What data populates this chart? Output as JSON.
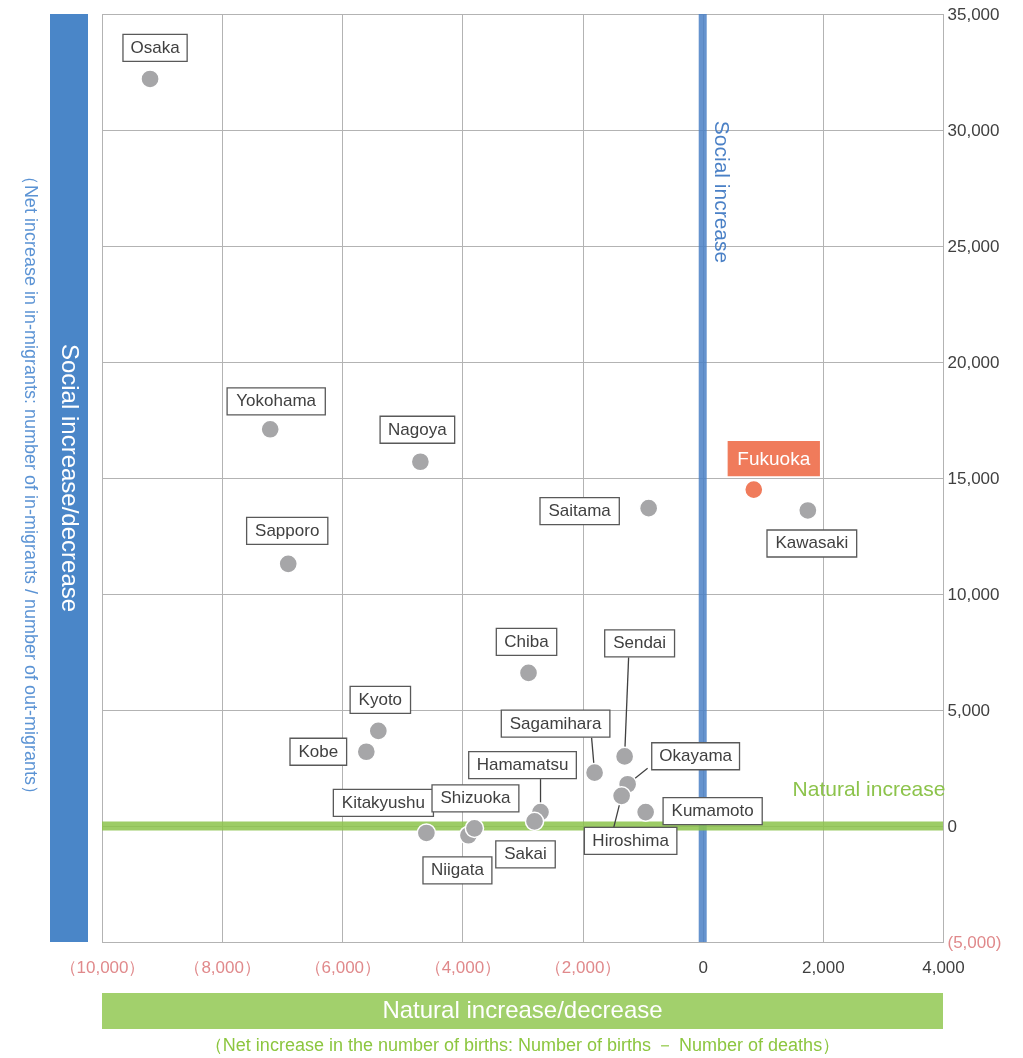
{
  "chart_data": {
    "type": "scatter",
    "xlabel": "Natural increase/decrease",
    "ylabel": "Social increase/decrease",
    "x": [
      -9200,
      -7200,
      -4700,
      -6900,
      850,
      -900,
      1750,
      -2900,
      -1300,
      -5400,
      -5600,
      -1800,
      -1250,
      -1350,
      -2700,
      -950,
      -4600,
      -3900,
      -3800,
      -2800
    ],
    "values": [
      32200,
      17100,
      15700,
      11300,
      14500,
      13700,
      13600,
      6600,
      3000,
      4100,
      3200,
      2300,
      1800,
      1300,
      600,
      600,
      -300,
      -400,
      -100,
      200
    ],
    "colors": [
      "#a6a6a8",
      "#a6a6a8",
      "#a6a6a8",
      "#a6a6a8",
      "#f07b5b",
      "#a6a6a8",
      "#a6a6a8",
      "#a6a6a8",
      "#a6a6a8",
      "#a6a6a8",
      "#a6a6a8",
      "#a6a6a8",
      "#a6a6a8",
      "#a6a6a8",
      "#a6a6a8",
      "#a6a6a8",
      "#a6a6a8",
      "#a6a6a8",
      "#a6a6a8",
      "#a6a6a8"
    ],
    "xlim": [
      -10000,
      4000
    ],
    "ylim": [
      -5000,
      35000
    ],
    "xticks": [
      {
        "value": -10000,
        "label": "（10,000）"
      },
      {
        "value": -8000,
        "label": "（8,000）"
      },
      {
        "value": -6000,
        "label": "（6,000）"
      },
      {
        "value": -4000,
        "label": "（4,000）"
      },
      {
        "value": -2000,
        "label": "（2,000）"
      },
      0,
      {
        "value": 2000,
        "label": "2,000"
      },
      {
        "value": 4000,
        "label": "4,000"
      }
    ],
    "yticks": [
      {
        "value": -5000,
        "label": "(5,000)"
      },
      0,
      {
        "value": 5000,
        "label": "5,000"
      },
      {
        "value": 10000,
        "label": "10,000"
      },
      {
        "value": 15000,
        "label": "15,000"
      },
      {
        "value": 20000,
        "label": "20,000"
      },
      {
        "value": 25000,
        "label": "25,000"
      },
      {
        "value": 30000,
        "label": "30,000"
      },
      {
        "value": 35000,
        "label": "35,000"
      }
    ],
    "grid": true,
    "marker": "circle",
    "ref_lines": [
      {
        "axis": "x",
        "value": 0,
        "label": "Social increase",
        "color": "#4a80c6"
      },
      {
        "axis": "y",
        "value": 0,
        "label": "Natural increase",
        "color": "#8cc34b"
      }
    ],
    "annotations": [
      {
        "text": "Osaka",
        "x": -9200,
        "y": 32200
      },
      {
        "text": "Yokohama",
        "x": -7200,
        "y": 17100
      },
      {
        "text": "Nagoya",
        "x": -4700,
        "y": 15700
      },
      {
        "text": "Sapporo",
        "x": -6900,
        "y": 11300
      },
      {
        "text": "Fukuoka",
        "x": 850,
        "y": 14500
      },
      {
        "text": "Saitama",
        "x": -900,
        "y": 13700
      },
      {
        "text": "Kawasaki",
        "x": 1750,
        "y": 13600
      },
      {
        "text": "Chiba",
        "x": -2900,
        "y": 6600
      },
      {
        "text": "Sendai",
        "x": -1300,
        "y": 3000
      },
      {
        "text": "Kyoto",
        "x": -5400,
        "y": 4100
      },
      {
        "text": "Kobe",
        "x": -5600,
        "y": 3200
      },
      {
        "text": "Sagamihara",
        "x": -1800,
        "y": 2300
      },
      {
        "text": "Okayama",
        "x": -1250,
        "y": 1800
      },
      {
        "text": "Hiroshima",
        "x": -1350,
        "y": 1300
      },
      {
        "text": "Hamamatsu",
        "x": -2700,
        "y": 600
      },
      {
        "text": "Kumamoto",
        "x": -950,
        "y": 600
      },
      {
        "text": "Kitakyushu",
        "x": -4600,
        "y": -300
      },
      {
        "text": "Niigata",
        "x": -3900,
        "y": -400
      },
      {
        "text": "Shizuoka",
        "x": -3800,
        "y": -100
      },
      {
        "text": "Sakai",
        "x": -2800,
        "y": 200
      },
      "（Net increase in in-migrants: number of in-migrants / number of out-migrants）",
      "（Net increase in the number of births: Number of births － Number of deaths）"
    ]
  }
}
